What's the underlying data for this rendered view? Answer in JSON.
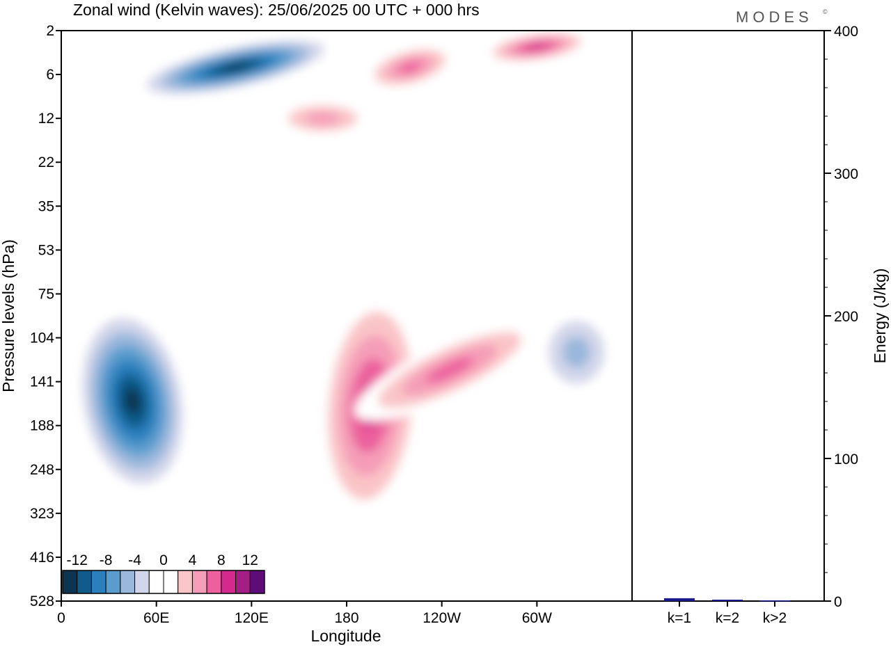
{
  "chart_data": [
    {
      "type": "heatmap",
      "title": "Zonal wind (Kelvin waves):  25/06/2025  00 UTC  + 000 hrs",
      "xlabel": "Longitude",
      "ylabel": "Pressure levels (hPa)",
      "x_ticks": [
        "0",
        "60E",
        "120E",
        "180",
        "120W",
        "60W"
      ],
      "x_tick_positions_deg": [
        0,
        60,
        120,
        180,
        240,
        300
      ],
      "x_range_deg": [
        0,
        360
      ],
      "y_ticks": [
        "2",
        "6",
        "12",
        "22",
        "35",
        "53",
        "75",
        "104",
        "141",
        "188",
        "248",
        "323",
        "416",
        "528"
      ],
      "y_scale": "model levels (nonlinear), 2 hPa at top, 528 hPa at bottom",
      "colorbar": {
        "tick_labels": [
          "-12",
          "-8",
          "-4",
          "0",
          "4",
          "8",
          "12"
        ],
        "levels": [
          -14,
          -12,
          -10,
          -8,
          -6,
          -4,
          -2,
          2,
          4,
          6,
          8,
          10,
          12,
          14
        ],
        "colors": [
          "#0d3550",
          "#0f5c8c",
          "#2b7fbd",
          "#5a9ccd",
          "#9ab7dc",
          "#d3d6ea",
          "#ffffff",
          "#ffffff",
          "#fac5c7",
          "#f59db8",
          "#ec619d",
          "#d42a8f",
          "#a51e86",
          "#5e0d78"
        ],
        "placement": "bottom-left"
      },
      "features": [
        {
          "sign": "negative",
          "lon_center": 45,
          "level_center_hpa": 160,
          "peak_ms": -13
        },
        {
          "sign": "positive",
          "lon_center": 195,
          "level_center_hpa": 165,
          "peak_ms": 10
        },
        {
          "sign": "negative",
          "lon_center": 110,
          "level_center_hpa": 5,
          "peak_ms": -12
        },
        {
          "sign": "positive",
          "lon_center": 300,
          "level_center_hpa": 3,
          "peak_ms": 10
        },
        {
          "sign": "positive",
          "lon_center": 220,
          "level_center_hpa": 5,
          "peak_ms": 9
        },
        {
          "sign": "positive",
          "lon_center": 165,
          "level_center_hpa": 12,
          "peak_ms": 7
        },
        {
          "sign": "positive",
          "lon_center": 245,
          "level_center_hpa": 130,
          "peak_ms": 8
        },
        {
          "sign": "negative",
          "lon_center": 325,
          "level_center_hpa": 115,
          "peak_ms": -5
        }
      ]
    },
    {
      "type": "bar",
      "ylabel": "Energy (J/kg)",
      "categories": [
        "k=1",
        "k=2",
        "k>2"
      ],
      "values": [
        2,
        1,
        0.5
      ],
      "ylim": [
        0,
        400
      ],
      "y_ticks": [
        "0",
        "100",
        "200",
        "300",
        "400"
      ],
      "bar_color": "#1a1a8c"
    }
  ],
  "branding": {
    "logo_text": "MODES",
    "logo_mark": "©"
  }
}
